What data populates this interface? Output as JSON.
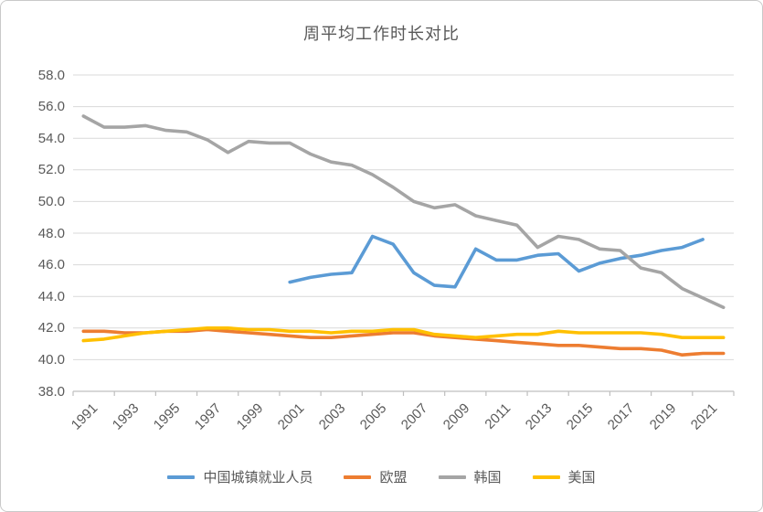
{
  "chart_data": {
    "type": "line",
    "title": "周平均工作时长对比",
    "xlabel": "",
    "ylabel": "",
    "ylim": [
      38.0,
      58.0
    ],
    "y_tick_step": 2.0,
    "y_tick_labels": [
      "58.0",
      "56.0",
      "54.0",
      "52.0",
      "50.0",
      "48.0",
      "46.0",
      "44.0",
      "42.0",
      "40.0",
      "38.0"
    ],
    "x_first_year": 1991,
    "x_last_year": 2022,
    "x_tick_labels": [
      "1991",
      "1993",
      "1995",
      "1997",
      "1999",
      "2001",
      "2003",
      "2005",
      "2007",
      "2009",
      "2011",
      "2013",
      "2015",
      "2017",
      "2019",
      "2021"
    ],
    "grid": true,
    "legend_position": "bottom",
    "axis_color": "#BFBFBF",
    "grid_color": "#D9D9D9",
    "text_color": "#595959",
    "series": [
      {
        "name": "中国城镇就业人员",
        "color": "#5B9BD5",
        "start_year": 2001,
        "values": [
          44.9,
          45.2,
          45.4,
          45.5,
          47.8,
          47.3,
          45.5,
          44.7,
          44.6,
          47.0,
          46.3,
          46.3,
          46.6,
          46.7,
          45.6,
          46.1,
          46.4,
          46.6,
          46.9,
          47.1,
          47.6
        ]
      },
      {
        "name": "欧盟",
        "color": "#ED7D31",
        "start_year": 1991,
        "values": [
          41.8,
          41.8,
          41.7,
          41.7,
          41.8,
          41.8,
          41.9,
          41.8,
          41.7,
          41.6,
          41.5,
          41.4,
          41.4,
          41.5,
          41.6,
          41.7,
          41.7,
          41.5,
          41.4,
          41.3,
          41.2,
          41.1,
          41.0,
          40.9,
          40.9,
          40.8,
          40.7,
          40.7,
          40.6,
          40.3,
          40.4,
          40.4
        ]
      },
      {
        "name": "韩国",
        "color": "#A5A5A5",
        "start_year": 1991,
        "values": [
          55.4,
          54.7,
          54.7,
          54.8,
          54.5,
          54.4,
          53.9,
          53.1,
          53.8,
          53.7,
          53.7,
          53.0,
          52.5,
          52.3,
          51.7,
          50.9,
          50.0,
          49.6,
          49.8,
          49.1,
          48.8,
          48.5,
          47.1,
          47.8,
          47.6,
          47.0,
          46.9,
          45.8,
          45.5,
          44.5,
          43.9,
          43.3
        ]
      },
      {
        "name": "美国",
        "color": "#FFC000",
        "start_year": 1991,
        "values": [
          41.2,
          41.3,
          41.5,
          41.7,
          41.8,
          41.9,
          42.0,
          42.0,
          41.9,
          41.9,
          41.8,
          41.8,
          41.7,
          41.8,
          41.8,
          41.9,
          41.9,
          41.6,
          41.5,
          41.4,
          41.5,
          41.6,
          41.6,
          41.8,
          41.7,
          41.7,
          41.7,
          41.7,
          41.6,
          41.4,
          41.4,
          41.4
        ]
      }
    ]
  }
}
